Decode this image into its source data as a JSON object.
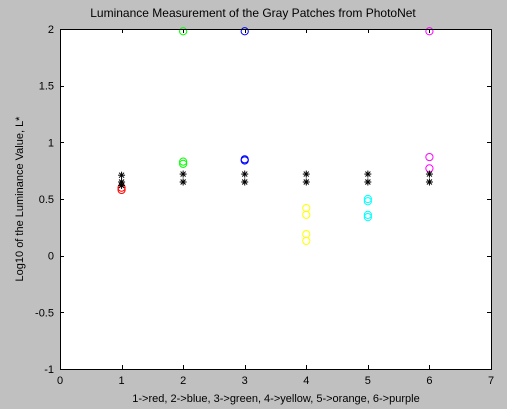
{
  "chart_data": {
    "type": "scatter",
    "title": "Luminance Measurement of the Gray Patches from PhotoNet",
    "xlabel": "1->red, 2->blue, 3->green, 4->yellow, 5->orange, 6->purple",
    "ylabel": "Log10 of the Luminance Value, L*",
    "xlim": [
      0,
      7
    ],
    "ylim": [
      -1,
      2
    ],
    "xticks": [
      0,
      1,
      2,
      3,
      4,
      5,
      6,
      7
    ],
    "yticks": [
      -1,
      -0.5,
      0,
      0.5,
      1,
      1.5,
      2
    ],
    "xtick_labels": [
      "0",
      "1",
      "2",
      "3",
      "4",
      "5",
      "6",
      "7"
    ],
    "ytick_labels": [
      "-1",
      "-0.5",
      "0",
      "0.5",
      "1",
      "1.5",
      "2"
    ],
    "grid": false,
    "series": [
      {
        "marker": "circle",
        "color": "#ff0000",
        "x": [
          1,
          1
        ],
        "y": [
          0.6,
          0.58
        ]
      },
      {
        "marker": "circle",
        "color": "#00ff00",
        "x": [
          2,
          2,
          2
        ],
        "y": [
          1.98,
          0.83,
          0.81
        ]
      },
      {
        "marker": "circle",
        "color": "#0000ff",
        "x": [
          3,
          3,
          3
        ],
        "y": [
          1.98,
          0.85,
          0.84
        ]
      },
      {
        "marker": "circle",
        "color": "#ffff00",
        "x": [
          4,
          4,
          4,
          4
        ],
        "y": [
          0.42,
          0.36,
          0.19,
          0.13
        ]
      },
      {
        "marker": "circle",
        "color": "#00ffff",
        "x": [
          5,
          5,
          5,
          5
        ],
        "y": [
          0.5,
          0.48,
          0.36,
          0.34
        ]
      },
      {
        "marker": "circle",
        "color": "#ff00ff",
        "x": [
          6,
          6,
          6
        ],
        "y": [
          1.98,
          0.87,
          0.77
        ]
      },
      {
        "marker": "asterisk",
        "color": "#000000",
        "x": [
          1,
          1,
          1,
          2,
          2,
          3,
          3,
          4,
          4,
          5,
          5,
          6,
          6
        ],
        "y": [
          0.71,
          0.65,
          0.62,
          0.72,
          0.65,
          0.72,
          0.65,
          0.72,
          0.65,
          0.72,
          0.65,
          0.72,
          0.65
        ]
      }
    ]
  }
}
